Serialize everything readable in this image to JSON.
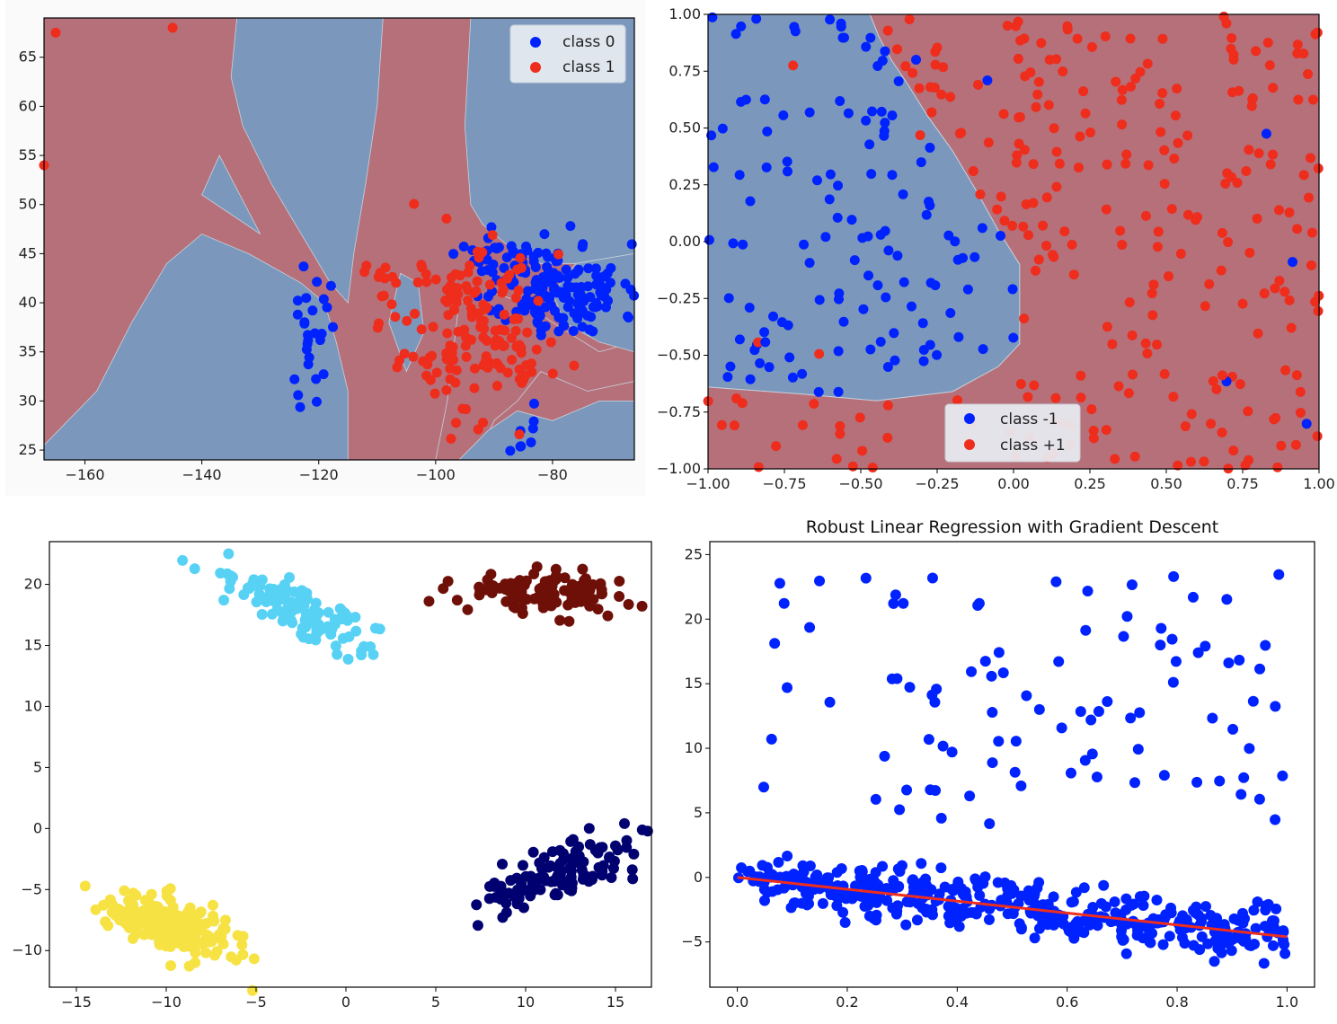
{
  "colors": {
    "class_blue": "#0022ff",
    "class_red": "#ee2d1d",
    "region_blue": "#7b98bc",
    "region_red": "#b5707a",
    "cyan": "#58d2f4",
    "dark_red": "#6e1008",
    "navy": "#000070",
    "yellow": "#f7e244",
    "fit_line": "#ee2d1d"
  },
  "chart_data": [
    {
      "id": "decision-map",
      "type": "scatter",
      "title": "",
      "xlabel": "",
      "ylabel": "",
      "xlim": [
        -167,
        -66
      ],
      "ylim": [
        24,
        69
      ],
      "xticks": [
        -160,
        -140,
        -120,
        -100,
        -80
      ],
      "yticks": [
        25,
        30,
        35,
        40,
        45,
        50,
        55,
        60,
        65
      ],
      "grid": false,
      "legend_position": "top-right",
      "background": "decision regions (class 0 blue, class 1 red)",
      "series": [
        {
          "name": "class 0",
          "color": "#0022ff",
          "clusters": [
            {
              "cx": -78,
              "cy": 41,
              "sx": 5,
              "sy": 2.5,
              "n": 140
            },
            {
              "cx": -88,
              "cy": 44,
              "sx": 5,
              "sy": 2,
              "n": 40
            },
            {
              "cx": -121,
              "cy": 38,
              "sx": 2,
              "sy": 3.5,
              "n": 28
            },
            {
              "cx": -84,
              "cy": 27.5,
              "sx": 1.2,
              "sy": 1.5,
              "n": 8
            }
          ]
        },
        {
          "name": "class 1",
          "color": "#ee2d1d",
          "clusters": [
            {
              "cx": -93,
              "cy": 37,
              "sx": 6,
              "sy": 4.5,
              "n": 150
            },
            {
              "cx": -110,
              "cy": 42,
              "sx": 4,
              "sy": 2,
              "n": 15
            }
          ],
          "points": [
            [
              -165,
              67.5
            ],
            [
              -145,
              68
            ],
            [
              -167,
              54
            ]
          ]
        }
      ]
    },
    {
      "id": "svm-boundary",
      "type": "scatter",
      "title": "",
      "xlabel": "",
      "ylabel": "",
      "xlim": [
        -1.0,
        1.0
      ],
      "ylim": [
        -1.0,
        1.0
      ],
      "xticks": [
        "−1.00",
        "−0.75",
        "−0.50",
        "−0.25",
        "0.00",
        "0.25",
        "0.50",
        "0.75",
        "1.00"
      ],
      "yticks": [
        "−1.00",
        "−0.75",
        "−0.50",
        "−0.25",
        "0.00",
        "0.25",
        "0.50",
        "0.75",
        "1.00"
      ],
      "grid": false,
      "legend_position": "bottom-center",
      "background": "decision regions (class -1 blue, class +1 red)",
      "series": [
        {
          "name": "class -1",
          "color": "#0022ff",
          "n": 130
        },
        {
          "name": "class +1",
          "color": "#ee2d1d",
          "n": 260
        }
      ]
    },
    {
      "id": "clusters",
      "type": "scatter",
      "title": "",
      "xlabel": "",
      "ylabel": "",
      "xlim": [
        -16.5,
        17
      ],
      "ylim": [
        -13,
        23.5
      ],
      "xticks": [
        -15,
        -10,
        -5,
        0,
        5,
        10,
        15
      ],
      "yticks": [
        -10,
        -5,
        0,
        5,
        10,
        15,
        20
      ],
      "grid": false,
      "series": [
        {
          "color": "#58d2f4",
          "cx": -2,
          "cy": 17.5,
          "sx": 2.2,
          "sy": 1.8,
          "n": 120
        },
        {
          "color": "#6e1008",
          "cx": 11,
          "cy": 19.3,
          "sx": 2.2,
          "sy": 0.9,
          "n": 110
        },
        {
          "color": "#000070",
          "cx": 12,
          "cy": -3.5,
          "sx": 2,
          "sy": 1.7,
          "n": 120
        },
        {
          "color": "#f7e244",
          "cx": -10,
          "cy": -8,
          "sx": 1.8,
          "sy": 1.5,
          "n": 200
        }
      ]
    },
    {
      "id": "robust-regression",
      "type": "scatter",
      "title": "Robust Linear Regression with Gradient Descent",
      "xlabel": "",
      "ylabel": "",
      "xlim": [
        -0.05,
        1.05
      ],
      "ylim": [
        -8.5,
        26
      ],
      "xticks": [
        "0.0",
        "0.2",
        "0.4",
        "0.6",
        "0.8",
        "1.0"
      ],
      "yticks": [
        -5,
        0,
        5,
        10,
        15,
        20,
        25
      ],
      "grid": false,
      "series": [
        {
          "color": "#0022ff",
          "inliers": {
            "n": 420,
            "line": [
              0,
              -4.6
            ],
            "noise": 1.1
          },
          "outliers": {
            "n": 95,
            "y_range": [
              4,
              24
            ]
          }
        },
        {
          "type": "line",
          "color": "#ee2d1d",
          "x": [
            0.0,
            1.0
          ],
          "y": [
            0.0,
            -4.6
          ]
        }
      ]
    }
  ]
}
